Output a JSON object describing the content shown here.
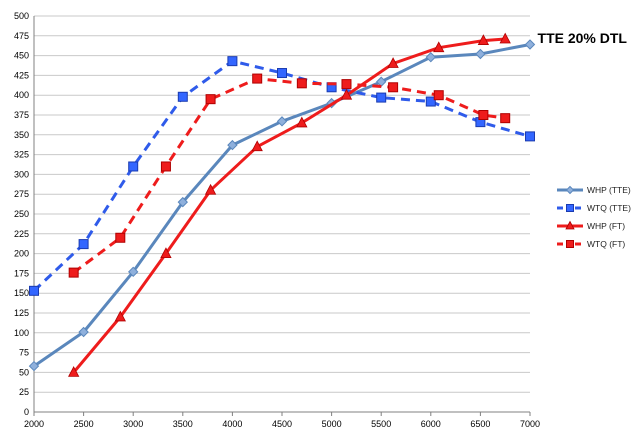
{
  "chart_data": {
    "type": "line",
    "title": "TTE 20% DTL",
    "xlabel": "",
    "ylabel": "",
    "xlim": [
      2000,
      7000
    ],
    "ylim": [
      0,
      500
    ],
    "x_ticks": [
      2000,
      2500,
      3000,
      3500,
      4000,
      4500,
      5000,
      5500,
      6000,
      6500,
      7000
    ],
    "y_ticks": [
      0,
      25,
      50,
      75,
      100,
      125,
      150,
      175,
      200,
      225,
      250,
      275,
      300,
      325,
      350,
      375,
      400,
      425,
      450,
      475,
      500
    ],
    "grid": "horizontal",
    "legend_position": "right",
    "series": [
      {
        "name": "WHP (TTE)",
        "color": "#5A87BC",
        "line_style": "solid",
        "marker": "diamond",
        "points": [
          [
            2000,
            58
          ],
          [
            2500,
            101
          ],
          [
            3000,
            177
          ],
          [
            3500,
            265
          ],
          [
            4000,
            337
          ],
          [
            4500,
            367
          ],
          [
            5000,
            390
          ],
          [
            5500,
            417
          ],
          [
            6000,
            448
          ],
          [
            6500,
            452
          ],
          [
            7000,
            464
          ]
        ]
      },
      {
        "name": "WTQ (TTE)",
        "color": "#2F5BEA",
        "line_style": "dashed",
        "marker": "square",
        "points": [
          [
            2000,
            153
          ],
          [
            2500,
            212
          ],
          [
            3000,
            310
          ],
          [
            3500,
            398
          ],
          [
            4000,
            443
          ],
          [
            4500,
            428
          ],
          [
            5000,
            410
          ],
          [
            5500,
            397
          ],
          [
            6000,
            392
          ],
          [
            6500,
            366
          ],
          [
            7000,
            348
          ]
        ]
      },
      {
        "name": "WHP (FT)",
        "color": "#EE1C1C",
        "line_style": "solid",
        "marker": "triangle",
        "points": [
          [
            2400,
            50
          ],
          [
            2870,
            120
          ],
          [
            3330,
            200
          ],
          [
            3780,
            280
          ],
          [
            4250,
            335
          ],
          [
            4700,
            365
          ],
          [
            5150,
            400
          ],
          [
            5620,
            440
          ],
          [
            6080,
            460
          ],
          [
            6530,
            469
          ],
          [
            6750,
            471
          ]
        ]
      },
      {
        "name": "WTQ (FT)",
        "color": "#EE1C1C",
        "line_style": "dashed",
        "marker": "square",
        "points": [
          [
            2400,
            176
          ],
          [
            2870,
            220
          ],
          [
            3330,
            310
          ],
          [
            3780,
            395
          ],
          [
            4250,
            421
          ],
          [
            4700,
            415
          ],
          [
            5150,
            414
          ],
          [
            5620,
            410
          ],
          [
            6080,
            400
          ],
          [
            6530,
            375
          ],
          [
            6750,
            371
          ]
        ]
      }
    ]
  }
}
